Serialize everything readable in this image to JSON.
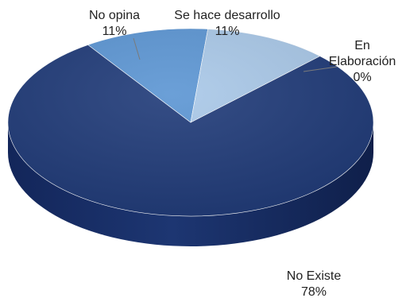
{
  "chart_data": {
    "type": "pie",
    "title": "",
    "categories": [
      "No Existe",
      "En Elaboración",
      "Se hace desarrollo",
      "No opina"
    ],
    "values": [
      78,
      0,
      11,
      11
    ],
    "value_labels": [
      "78%",
      "0%",
      "11%",
      "11%"
    ],
    "label_lines": [
      [
        "No Existe",
        "78%"
      ],
      [
        "En",
        "Elaboración",
        "0%"
      ],
      [
        "Se hace desarrollo",
        "11%"
      ],
      [
        "No opina",
        "11%"
      ]
    ],
    "colors": [
      "#1f3a78",
      "#2f5fa8",
      "#5b95d3",
      "#a9c8e8"
    ],
    "style": "3d",
    "legend": "none"
  }
}
